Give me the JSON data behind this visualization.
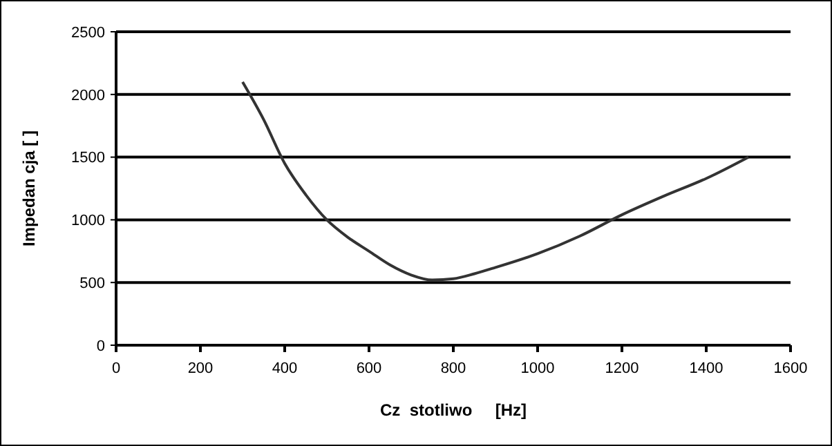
{
  "chart_data": {
    "type": "line",
    "xlabel": "Cz  stotliwo     [Hz]",
    "ylabel": "Impedan cja [ ]",
    "xlim": [
      0,
      1600
    ],
    "xticks": [
      0,
      200,
      400,
      600,
      800,
      1000,
      1200,
      1400,
      1600
    ],
    "ylim": [
      0,
      2500
    ],
    "yticks": [
      0,
      500,
      1000,
      1500,
      2000,
      2500
    ],
    "grid": "y",
    "marker": "none",
    "line_style": "solid",
    "series": [
      {
        "color": "#333333",
        "x": [
          300,
          350,
          400,
          450,
          500,
          550,
          600,
          650,
          700,
          750,
          800,
          850,
          900,
          1000,
          1100,
          1200,
          1300,
          1400,
          1500
        ],
        "values": [
          2100,
          1800,
          1450,
          1200,
          1000,
          860,
          750,
          640,
          560,
          520,
          530,
          570,
          620,
          730,
          870,
          1040,
          1190,
          1330,
          1500
        ]
      }
    ]
  }
}
